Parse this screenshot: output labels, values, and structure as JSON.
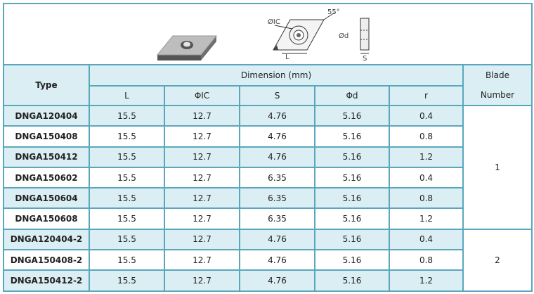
{
  "diagram": {
    "labels": {
      "ic": "ØIC",
      "angle": "55°",
      "d": "Ød",
      "l": "L",
      "s": "S"
    }
  },
  "table": {
    "header": {
      "type": "Type",
      "dimension": "Dimension (mm)",
      "columns": [
        "L",
        "ΦIC",
        "S",
        "Φd",
        "r"
      ],
      "blade": "Blade Number"
    },
    "groups": [
      {
        "blade": 1,
        "rows": [
          [
            "DNGA120404",
            15.5,
            12.7,
            4.76,
            5.16,
            0.4
          ],
          [
            "DNGA150408",
            15.5,
            12.7,
            4.76,
            5.16,
            0.8
          ],
          [
            "DNGA150412",
            15.5,
            12.7,
            4.76,
            5.16,
            1.2
          ],
          [
            "DNGA150602",
            15.5,
            12.7,
            6.35,
            5.16,
            0.4
          ],
          [
            "DNGA150604",
            15.5,
            12.7,
            6.35,
            5.16,
            0.8
          ],
          [
            "DNGA150608",
            15.5,
            12.7,
            6.35,
            5.16,
            1.2
          ]
        ]
      },
      {
        "blade": 2,
        "rows": [
          [
            "DNGA120404-2",
            15.5,
            12.7,
            4.76,
            5.16,
            0.4
          ],
          [
            "DNGA150408-2",
            15.5,
            12.7,
            4.76,
            5.16,
            0.8
          ],
          [
            "DNGA150412-2",
            15.5,
            12.7,
            4.76,
            5.16,
            1.2
          ]
        ]
      }
    ]
  }
}
